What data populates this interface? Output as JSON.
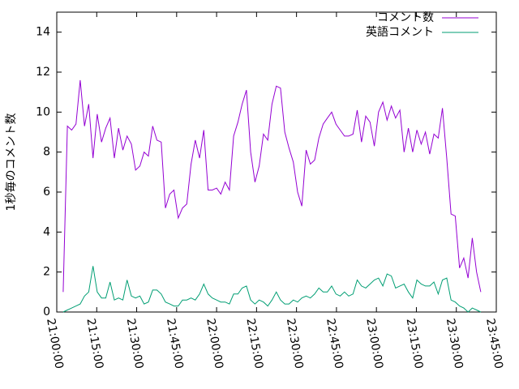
{
  "chart_data": {
    "type": "line",
    "ylabel": "1秒毎のコメント数",
    "x": [
      "21:02:24",
      "21:04:00",
      "21:05:36",
      "21:07:12",
      "21:08:48",
      "21:10:24",
      "21:12:00",
      "21:13:36",
      "21:15:12",
      "21:16:48",
      "21:18:24",
      "21:20:00",
      "21:21:36",
      "21:23:12",
      "21:24:48",
      "21:26:24",
      "21:28:00",
      "21:29:36",
      "21:31:12",
      "21:32:48",
      "21:34:24",
      "21:36:00",
      "21:37:36",
      "21:39:12",
      "21:40:48",
      "21:42:24",
      "21:44:00",
      "21:45:36",
      "21:47:12",
      "21:48:48",
      "21:50:24",
      "21:52:00",
      "21:53:36",
      "21:55:12",
      "21:56:48",
      "21:58:24",
      "22:00:00",
      "22:01:36",
      "22:03:12",
      "22:04:48",
      "22:06:24",
      "22:08:00",
      "22:09:36",
      "22:11:12",
      "22:12:48",
      "22:14:24",
      "22:16:00",
      "22:17:36",
      "22:19:12",
      "22:20:48",
      "22:22:24",
      "22:24:00",
      "22:25:36",
      "22:27:12",
      "22:28:48",
      "22:30:24",
      "22:32:00",
      "22:33:36",
      "22:35:12",
      "22:36:48",
      "22:38:24",
      "22:40:00",
      "22:41:36",
      "22:43:12",
      "22:44:48",
      "22:46:24",
      "22:48:00",
      "22:49:36",
      "22:51:12",
      "22:52:48",
      "22:54:24",
      "22:56:00",
      "22:57:36",
      "22:59:12",
      "23:00:48",
      "23:02:24",
      "23:04:00",
      "23:05:36",
      "23:07:12",
      "23:08:48",
      "23:10:24",
      "23:12:00",
      "23:13:36",
      "23:15:12",
      "23:16:48",
      "23:18:24",
      "23:20:00",
      "23:21:36",
      "23:23:12",
      "23:24:48",
      "23:26:24",
      "23:28:00",
      "23:29:36",
      "23:31:12",
      "23:32:48",
      "23:34:24",
      "23:36:00",
      "23:37:36",
      "23:39:12"
    ],
    "series": [
      {
        "name": "コメント数",
        "color": "#9400d3",
        "values": [
          1.0,
          9.3,
          9.1,
          9.4,
          11.6,
          9.3,
          10.4,
          7.7,
          9.9,
          8.5,
          9.2,
          9.7,
          7.7,
          9.2,
          8.1,
          8.8,
          8.4,
          7.1,
          7.3,
          8.0,
          7.8,
          9.3,
          8.6,
          8.5,
          5.2,
          5.9,
          6.1,
          4.7,
          5.2,
          5.4,
          7.4,
          8.6,
          7.7,
          9.1,
          6.1,
          6.1,
          6.2,
          5.9,
          6.5,
          6.1,
          8.8,
          9.5,
          10.4,
          11.1,
          8.0,
          6.5,
          7.3,
          8.9,
          8.6,
          10.4,
          11.3,
          11.2,
          9.0,
          8.2,
          7.5,
          6.0,
          5.3,
          8.1,
          7.4,
          7.6,
          8.7,
          9.4,
          9.7,
          10.0,
          9.4,
          9.1,
          8.8,
          8.8,
          8.9,
          10.1,
          8.5,
          9.8,
          9.5,
          8.3,
          10.0,
          10.5,
          9.6,
          10.3,
          9.7,
          10.1,
          8.0,
          9.2,
          8.0,
          9.1,
          8.4,
          9.0,
          7.9,
          8.9,
          8.7,
          10.2,
          7.7,
          4.9,
          4.8,
          2.2,
          2.7,
          1.7,
          3.7,
          2.0,
          1.0
        ]
      },
      {
        "name": "英語コメント",
        "color": "#009e73",
        "values": [
          0.0,
          0.1,
          0.2,
          0.3,
          0.4,
          0.8,
          1.0,
          2.3,
          1.0,
          0.7,
          0.7,
          1.5,
          0.6,
          0.7,
          0.6,
          1.6,
          0.8,
          0.7,
          0.8,
          0.4,
          0.5,
          1.1,
          1.1,
          0.9,
          0.5,
          0.4,
          0.3,
          0.3,
          0.6,
          0.6,
          0.7,
          0.6,
          0.9,
          1.4,
          0.9,
          0.7,
          0.6,
          0.5,
          0.5,
          0.4,
          0.9,
          0.9,
          1.2,
          1.3,
          0.6,
          0.4,
          0.6,
          0.5,
          0.3,
          0.6,
          1.0,
          0.6,
          0.4,
          0.4,
          0.6,
          0.5,
          0.7,
          0.8,
          0.7,
          0.9,
          1.2,
          1.0,
          1.0,
          1.3,
          0.9,
          0.8,
          1.0,
          0.8,
          0.9,
          1.6,
          1.3,
          1.2,
          1.4,
          1.6,
          1.7,
          1.3,
          1.9,
          1.8,
          1.2,
          1.3,
          1.4,
          1.0,
          0.7,
          1.6,
          1.4,
          1.3,
          1.3,
          1.5,
          0.9,
          1.6,
          1.7,
          0.6,
          0.5,
          0.3,
          0.2,
          0.0,
          0.2,
          0.1,
          0.0
        ]
      }
    ],
    "xlim": [
      "21:00:00",
      "23:45:00"
    ],
    "xticks": [
      "21:00:00",
      "21:15:00",
      "21:30:00",
      "21:45:00",
      "22:00:00",
      "22:15:00",
      "22:30:00",
      "22:45:00",
      "23:00:00",
      "23:15:00",
      "23:30:00",
      "23:45:00"
    ],
    "ylim": [
      0,
      15
    ],
    "yticks": [
      0,
      2,
      4,
      6,
      8,
      10,
      12,
      14
    ],
    "legend": "top-right"
  }
}
